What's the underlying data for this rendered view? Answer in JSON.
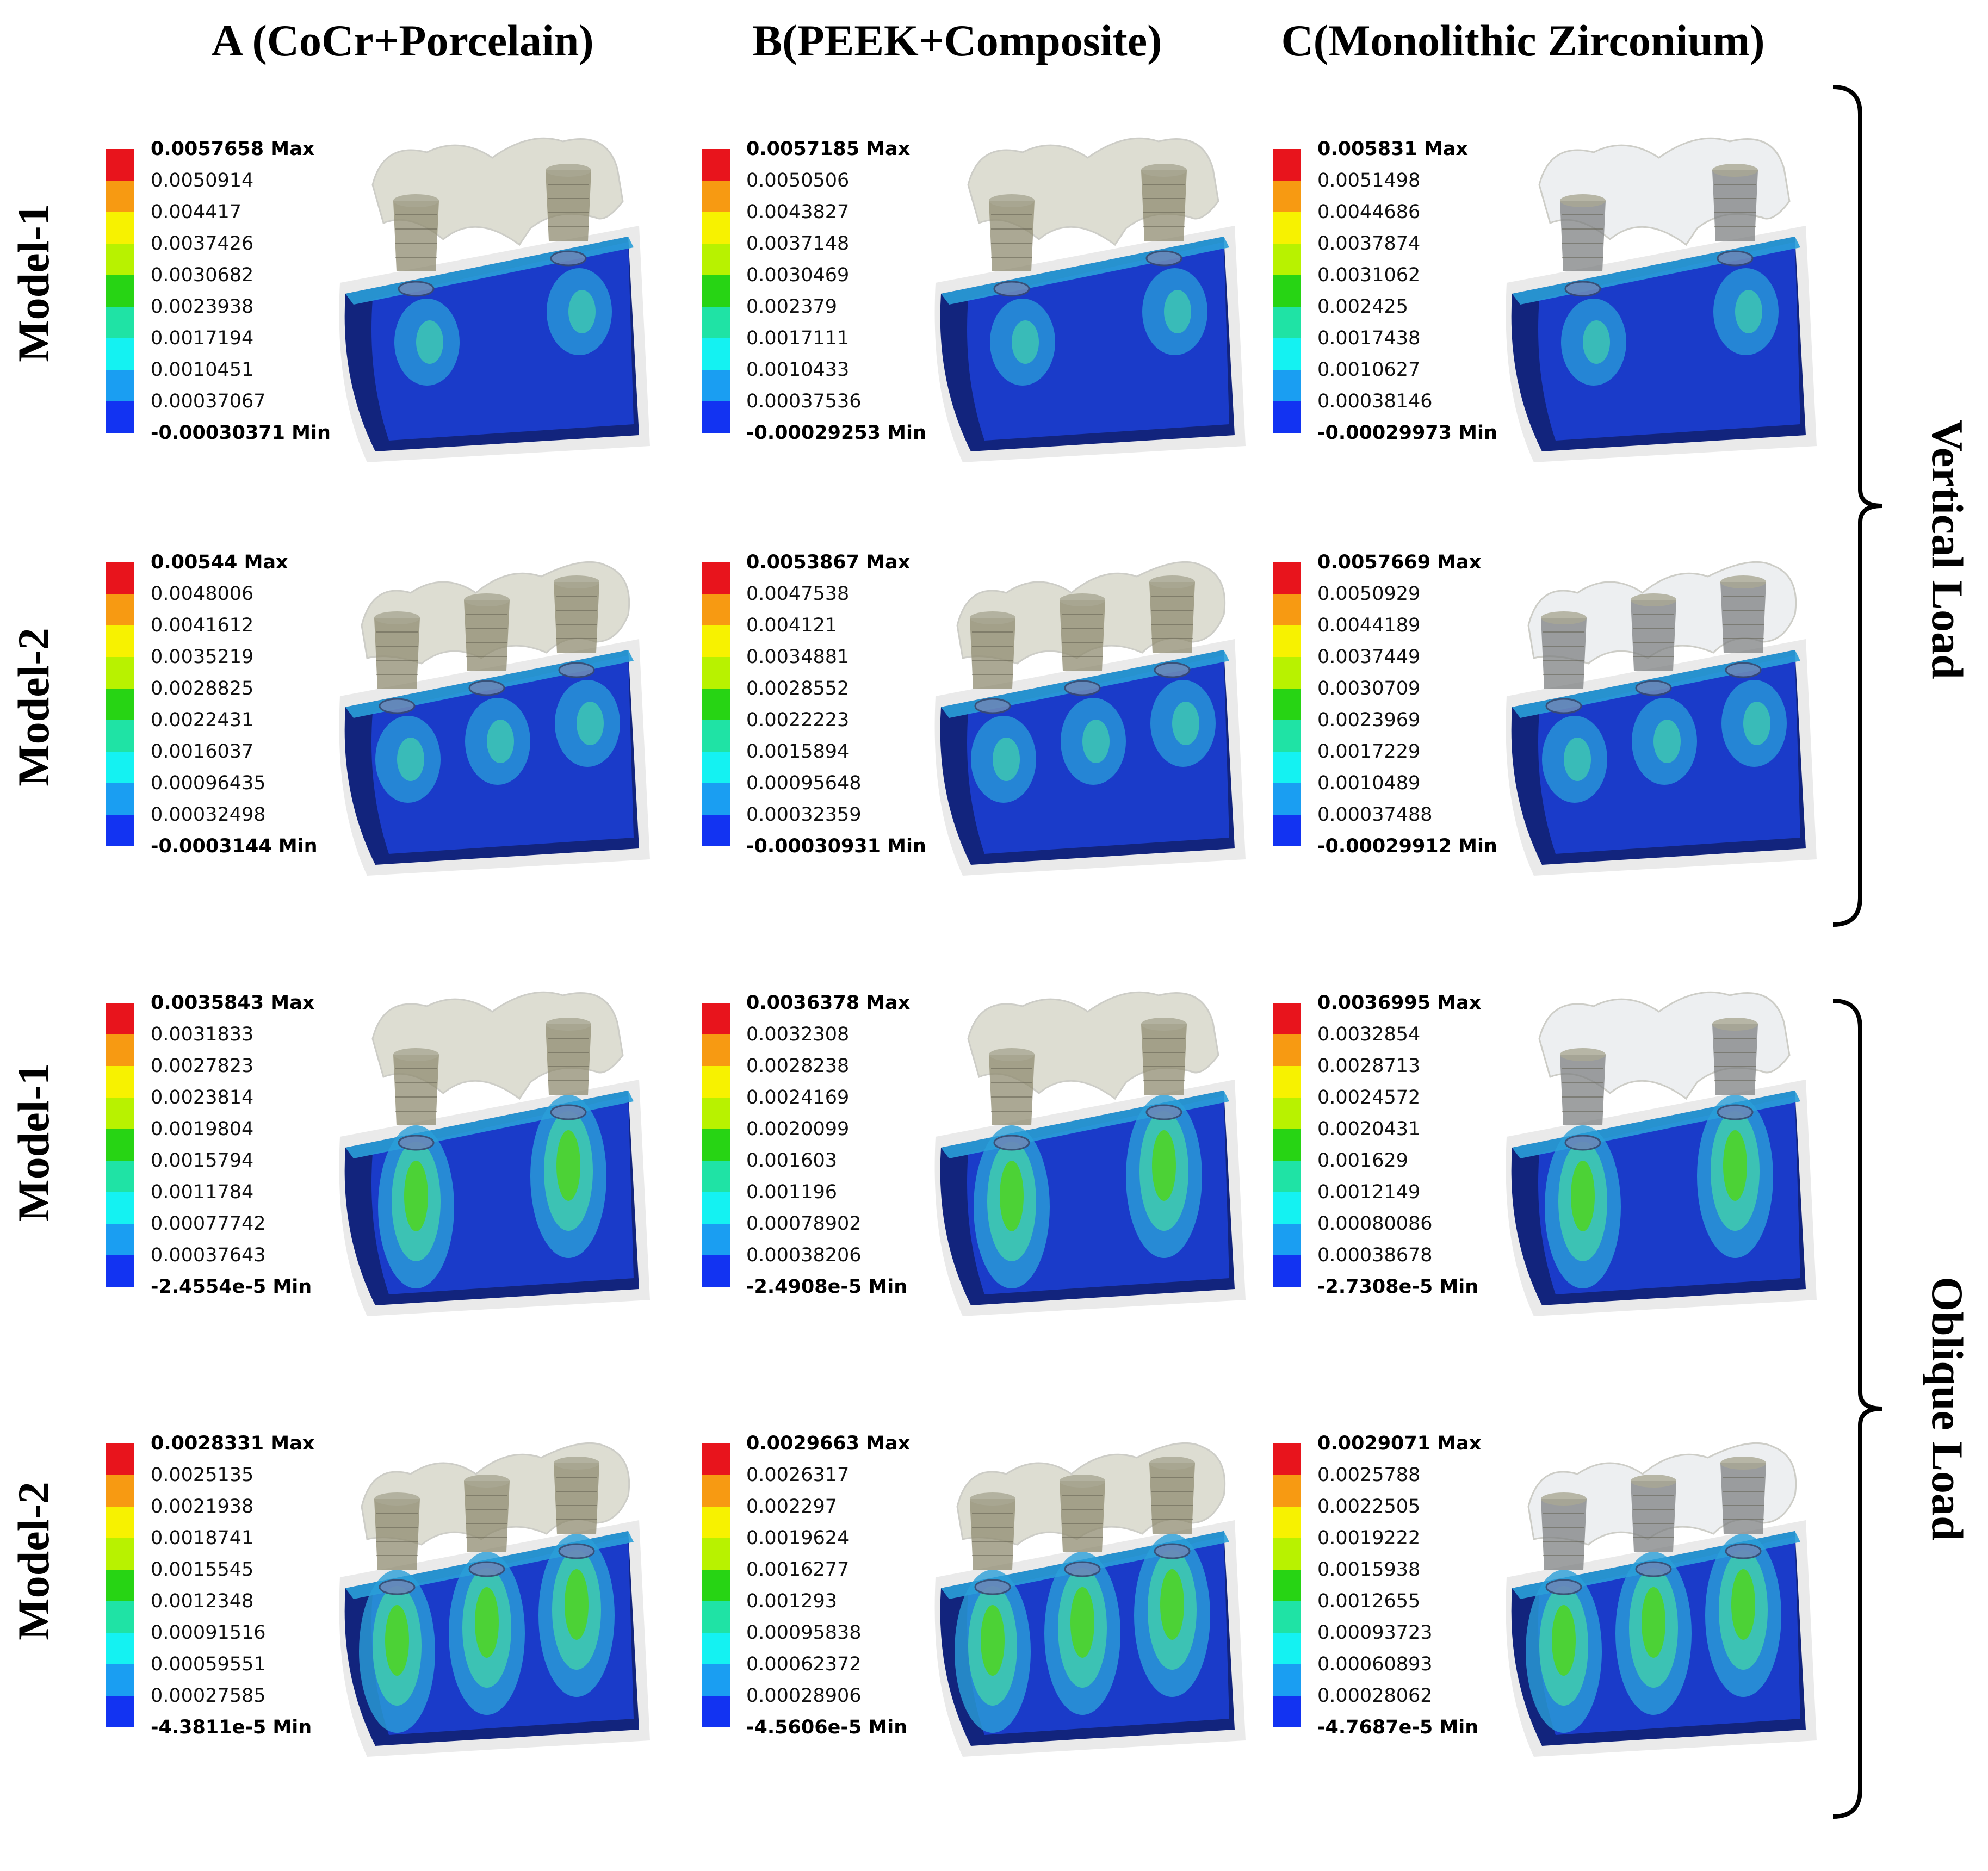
{
  "columns": [
    "A (CoCr+Porcelain)",
    "B(PEEK+Composite)",
    "C(Monolithic Zirconium)"
  ],
  "load_groups": [
    {
      "label": "Vertical Load",
      "rows": [
        {
          "label": "Model-1",
          "panels": [
            {
              "max": "0.0057658 Max",
              "ticks": [
                "0.0050914",
                "0.004417",
                "0.0037426",
                "0.0030682",
                "0.0023938",
                "0.0017194",
                "0.0010451",
                "0.00037067"
              ],
              "min": "-0.00030371 Min"
            },
            {
              "max": "0.0057185 Max",
              "ticks": [
                "0.0050506",
                "0.0043827",
                "0.0037148",
                "0.0030469",
                "0.002379",
                "0.0017111",
                "0.0010433",
                "0.00037536"
              ],
              "min": "-0.00029253 Min"
            },
            {
              "max": "0.005831 Max",
              "ticks": [
                "0.0051498",
                "0.0044686",
                "0.0037874",
                "0.0031062",
                "0.002425",
                "0.0017438",
                "0.0010627",
                "0.00038146"
              ],
              "min": "-0.00029973 Min"
            }
          ]
        },
        {
          "label": "Model-2",
          "panels": [
            {
              "max": "0.00544 Max",
              "ticks": [
                "0.0048006",
                "0.0041612",
                "0.0035219",
                "0.0028825",
                "0.0022431",
                "0.0016037",
                "0.00096435",
                "0.00032498"
              ],
              "min": "-0.0003144 Min"
            },
            {
              "max": "0.0053867 Max",
              "ticks": [
                "0.0047538",
                "0.004121",
                "0.0034881",
                "0.0028552",
                "0.0022223",
                "0.0015894",
                "0.00095648",
                "0.00032359"
              ],
              "min": "-0.00030931 Min"
            },
            {
              "max": "0.0057669 Max",
              "ticks": [
                "0.0050929",
                "0.0044189",
                "0.0037449",
                "0.0030709",
                "0.0023969",
                "0.0017229",
                "0.0010489",
                "0.00037488"
              ],
              "min": "-0.00029912 Min"
            }
          ]
        }
      ]
    },
    {
      "label": "Oblique Load",
      "rows": [
        {
          "label": "Model-1",
          "panels": [
            {
              "max": "0.0035843 Max",
              "ticks": [
                "0.0031833",
                "0.0027823",
                "0.0023814",
                "0.0019804",
                "0.0015794",
                "0.0011784",
                "0.00077742",
                "0.00037643"
              ],
              "min": "-2.4554e-5 Min"
            },
            {
              "max": "0.0036378 Max",
              "ticks": [
                "0.0032308",
                "0.0028238",
                "0.0024169",
                "0.0020099",
                "0.001603",
                "0.001196",
                "0.00078902",
                "0.00038206"
              ],
              "min": "-2.4908e-5 Min"
            },
            {
              "max": "0.0036995 Max",
              "ticks": [
                "0.0032854",
                "0.0028713",
                "0.0024572",
                "0.0020431",
                "0.001629",
                "0.0012149",
                "0.00080086",
                "0.00038678"
              ],
              "min": "-2.7308e-5 Min"
            }
          ]
        },
        {
          "label": "Model-2",
          "panels": [
            {
              "max": "0.0028331 Max",
              "ticks": [
                "0.0025135",
                "0.0021938",
                "0.0018741",
                "0.0015545",
                "0.0012348",
                "0.00091516",
                "0.00059551",
                "0.00027585"
              ],
              "min": "-4.3811e-5 Min"
            },
            {
              "max": "0.0029663 Max",
              "ticks": [
                "0.0026317",
                "0.002297",
                "0.0019624",
                "0.0016277",
                "0.001293",
                "0.00095838",
                "0.00062372",
                "0.00028906"
              ],
              "min": "-4.5606e-5 Min"
            },
            {
              "max": "0.0029071 Max",
              "ticks": [
                "0.0025788",
                "0.0022505",
                "0.0019222",
                "0.0015938",
                "0.0012655",
                "0.00093723",
                "0.00060893",
                "0.00028062"
              ],
              "min": "-4.7687e-5 Min"
            }
          ]
        }
      ]
    }
  ],
  "colormap": [
    "#e8141c",
    "#f79a12",
    "#f7f200",
    "#b8f200",
    "#27d414",
    "#1fe3a5",
    "#14f2f2",
    "#1a9ef2",
    "#1233f2"
  ],
  "mesh_colors": {
    "bone_dark": "#12247d",
    "bone_mid": "#1c3fd6",
    "stress_low": "#2a9fd8",
    "stress_mid": "#3fc8b0",
    "stress_high": "#4ed428",
    "crown_tint_ab": "#cfcfc0",
    "crown_tint_c": "#e6e9ec",
    "abutment_ab": "#8f8b70",
    "abutment_c": "#7e8082"
  }
}
